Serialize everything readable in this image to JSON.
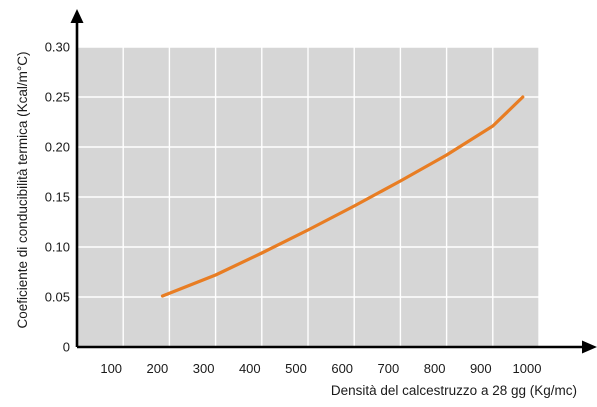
{
  "chart_data": {
    "type": "line",
    "title": "",
    "xlabel": "Densità del calcestruzzo a 28 gg (Kg/mc)",
    "ylabel": "Coeficiente di conducibilità termica (Kcal/m°C)",
    "xlim": [
      0,
      1000
    ],
    "ylim": [
      0,
      0.3
    ],
    "x_ticks": [
      100,
      200,
      300,
      400,
      500,
      600,
      700,
      800,
      900,
      1000
    ],
    "x_tick_labels": [
      "100",
      "200",
      "300",
      "400",
      "500",
      "600",
      "700",
      "800",
      "900",
      "1000"
    ],
    "y_ticks": [
      0,
      0.05,
      0.1,
      0.15,
      0.2,
      0.25,
      0.3
    ],
    "y_tick_labels": [
      "0",
      "0.05",
      "0.10",
      "0.15",
      "0.20",
      "0.25",
      "0.30"
    ],
    "grid": true,
    "plot_background": "#d6d6d6",
    "grid_color": "#ffffff",
    "series": [
      {
        "color": "#e87d23",
        "x": [
          185,
          300,
          400,
          500,
          600,
          700,
          800,
          900,
          965
        ],
        "y": [
          0.051,
          0.072,
          0.094,
          0.117,
          0.141,
          0.166,
          0.192,
          0.221,
          0.25
        ]
      }
    ]
  }
}
